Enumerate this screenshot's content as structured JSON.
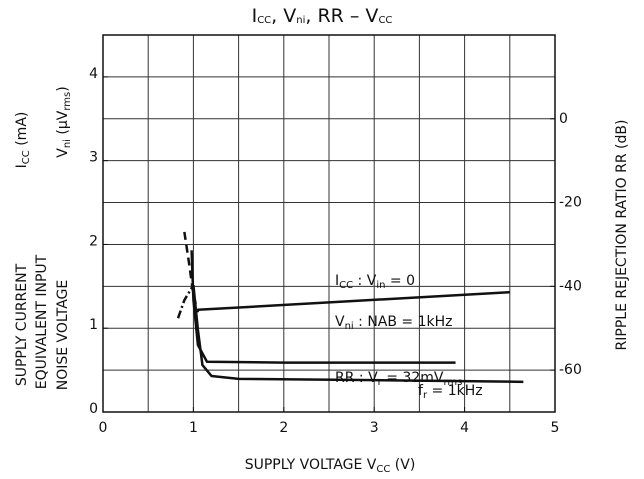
{
  "chart_data": {
    "type": "line",
    "title": [
      "I",
      "CC",
      ", V",
      "ni",
      ", RR  –  V",
      "CC"
    ],
    "xlabel": [
      "SUPPLY VOLTAGE   V",
      "CC",
      "   (V)"
    ],
    "ylabel_lines": [
      "SUPPLY CURRENT",
      "EQUIVALENT INPUT",
      "NOISE VOLTAGE"
    ],
    "ylabel_units": [
      [
        "I",
        "CC",
        "     (mA)"
      ],
      [
        "V",
        "ni",
        "   (μV",
        "rms",
        ")"
      ]
    ],
    "y2label": "RIPPLE REJECTION RATIO    RR    (dB)",
    "annotations": [
      [
        "I",
        "CC",
        "  :  V",
        "in",
        " = 0"
      ],
      [
        "V",
        "ni",
        "  :  NAB = 1kHz"
      ],
      [
        "RR : V",
        "r",
        " = 32mV",
        "rms"
      ],
      [
        "f",
        "r",
        " = 1kHz"
      ]
    ],
    "xlim": [
      0,
      5
    ],
    "xticks": [
      0,
      1,
      2,
      3,
      4,
      5
    ],
    "xgrid": [
      0.5,
      1,
      1.5,
      2,
      2.5,
      3,
      3.5,
      4,
      4.5
    ],
    "ylim": [
      0,
      4.5
    ],
    "yticks": [
      0,
      1,
      2,
      3,
      4
    ],
    "y2lim": [
      -70,
      20
    ],
    "y2ticks": [
      -60,
      -40,
      -20,
      0
    ],
    "y2grid": [
      -60,
      -50,
      -40,
      -30,
      -20,
      -10,
      0,
      10
    ],
    "grid": true,
    "series": [
      {
        "color": "#111",
        "x": [
          1.05,
          4.5
        ],
        "values": [
          1.22,
          1.43
        ]
      },
      {
        "color": "#111",
        "x": [
          0.98,
          1.0,
          1.05,
          1.15,
          2,
          3.9
        ],
        "values": [
          1.93,
          1.34,
          0.8,
          0.6,
          0.59,
          0.59
        ]
      },
      {
        "color": "#111",
        "dash": "8 5",
        "x": [
          0.9,
          0.95,
          1.0,
          1.05
        ],
        "values": [
          2.15,
          1.79,
          1.4,
          1.19
        ]
      },
      {
        "color": "#111",
        "axis": "y2",
        "x": [
          1.0,
          1.05,
          1.1,
          1.2,
          1.5,
          3,
          4.65
        ],
        "values": [
          -39.7,
          -50.4,
          -58.8,
          -61.4,
          -62.1,
          -62.4,
          -62.8
        ]
      },
      {
        "color": "#111",
        "axis": "y2",
        "dash": "8 3 2 3",
        "x": [
          0.83,
          0.9,
          1.0
        ],
        "values": [
          -47.6,
          -43.3,
          -39.7
        ]
      }
    ]
  }
}
